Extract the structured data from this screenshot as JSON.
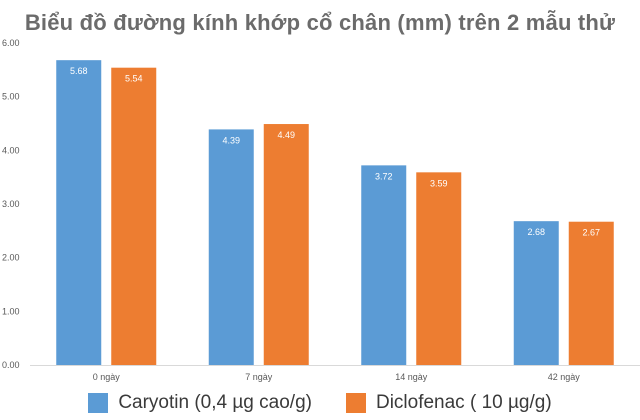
{
  "chart_data": {
    "type": "bar",
    "title": "Biểu đồ đường kính khớp cổ chân (mm) trên 2 mẫu thử",
    "categories": [
      "0 ngày",
      "7 ngày",
      "14 ngày",
      "42 ngày"
    ],
    "series": [
      {
        "name": "Caryotin (0,4 µg cao/g)",
        "color": "#5b9bd5",
        "values": [
          5.68,
          4.39,
          3.72,
          2.68
        ],
        "labels": [
          "5.68",
          "4.39",
          "3.72",
          "2.68"
        ]
      },
      {
        "name": "Diclofenac ( 10 µg/g)",
        "color": "#ed7d31",
        "values": [
          5.54,
          4.49,
          3.59,
          2.67
        ],
        "labels": [
          "5.54",
          "4.49",
          "3.59",
          "2.67"
        ]
      }
    ],
    "ylim": [
      0,
      6
    ],
    "yticks": [
      "0.00",
      "1.00",
      "2.00",
      "3.00",
      "4.00",
      "5.00",
      "6.00"
    ],
    "grid": false,
    "legend_position": "bottom"
  }
}
